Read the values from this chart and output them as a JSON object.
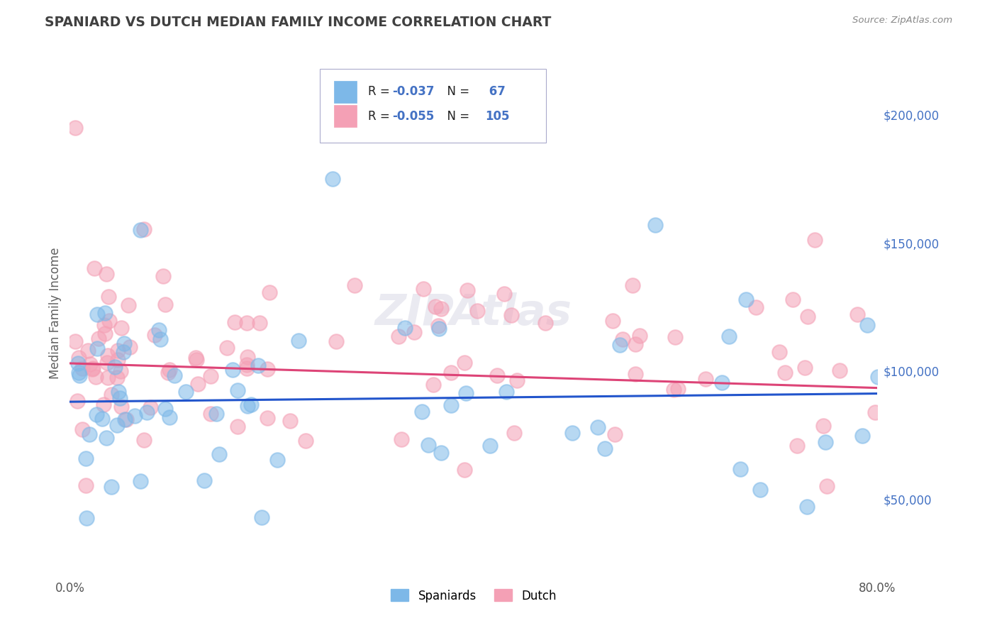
{
  "title": "SPANIARD VS DUTCH MEDIAN FAMILY INCOME CORRELATION CHART",
  "source": "Source: ZipAtlas.com",
  "ylabel": "Median Family Income",
  "xlim": [
    0.0,
    0.8
  ],
  "ylim": [
    20000,
    225000
  ],
  "ytick_values": [
    50000,
    100000,
    150000,
    200000
  ],
  "ytick_labels": [
    "$50,000",
    "$100,000",
    "$150,000",
    "$200,000"
  ],
  "spaniards_color": "#7db8e8",
  "dutch_color": "#f4a0b5",
  "spaniards_R": -0.037,
  "spaniards_N": 67,
  "dutch_R": -0.055,
  "dutch_N": 105,
  "trend_blue": "#2255cc",
  "trend_pink": "#dd4477",
  "watermark": "ZIPAtlas",
  "legend_label1": "Spaniards",
  "legend_label2": "Dutch",
  "background_color": "#ffffff",
  "grid_color": "#b0b0c8",
  "title_color": "#404040",
  "ylabel_color": "#606060",
  "ytick_color": "#4472c4",
  "source_color": "#888888",
  "legend_text_color": "#222222",
  "legend_rn_color": "#4472c4"
}
